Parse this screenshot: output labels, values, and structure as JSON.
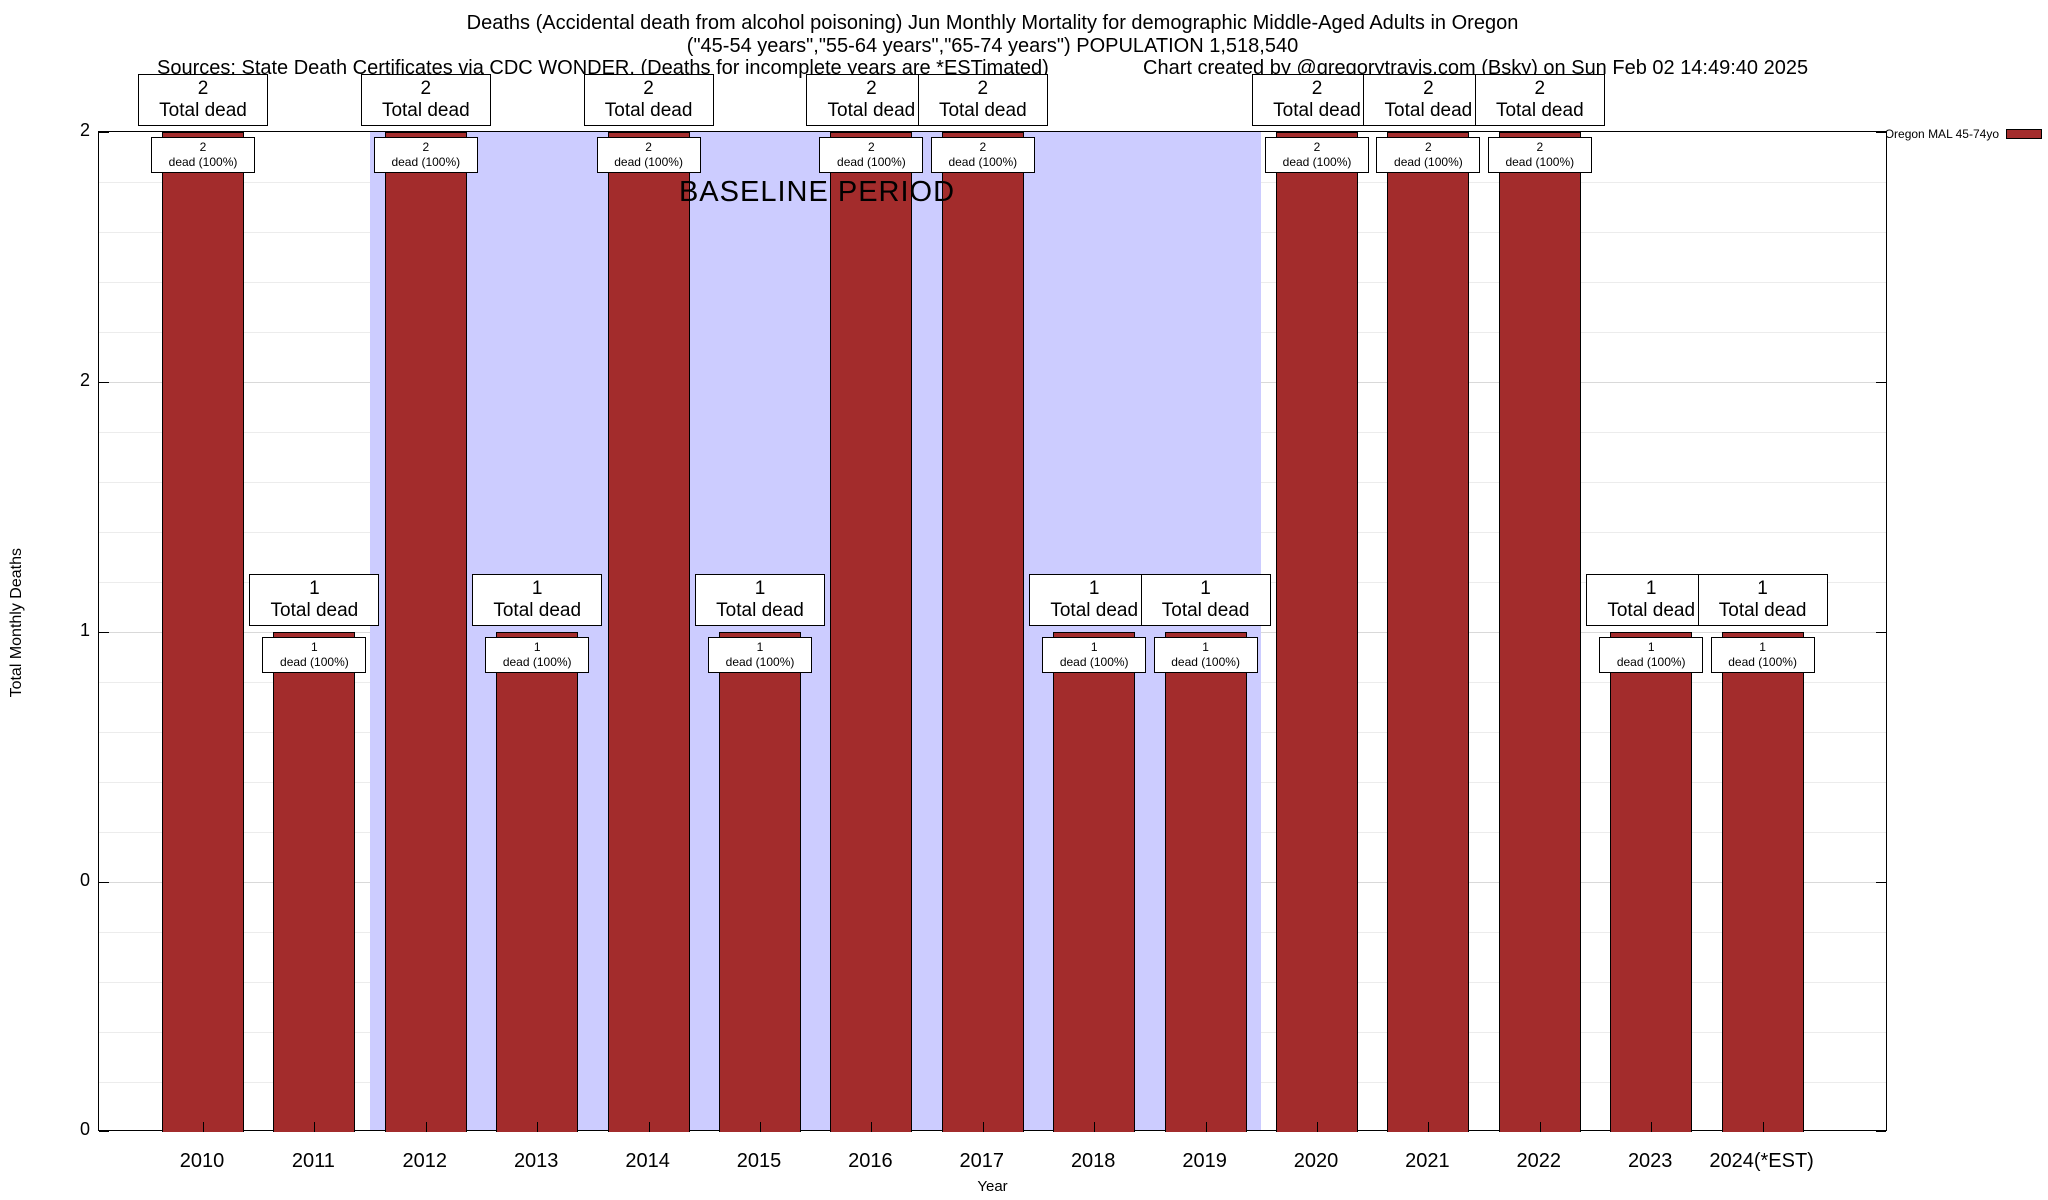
{
  "header": {
    "title_line1": "Deaths (Accidental death from alcohol poisoning) Jun Monthly Mortality for demographic Middle-Aged Adults in Oregon",
    "title_line2": "(\"45-54 years\",\"55-64 years\",\"65-74 years\") POPULATION 1,518,540",
    "sources": "Sources: State Death Certificates via CDC WONDER. (Deaths for incomplete years are *ESTimated)",
    "credit": "Chart created by @gregorytravis.com (Bsky) on Sun Feb 02 14:49:40 2025"
  },
  "legend": {
    "label": "Oregon MAL 45-74yo",
    "color": "#a32c2c"
  },
  "chart_data": {
    "type": "bar",
    "title": "Deaths (Accidental death from alcohol poisoning) Jun Monthly Mortality for demographic Middle-Aged Adults in Oregon",
    "subtitle": "(\"45-54 years\",\"55-64 years\",\"65-74 years\") POPULATION 1,518,540",
    "xlabel": "Year",
    "ylabel": "Total Monthly Deaths",
    "ylim": [
      0,
      2
    ],
    "ytick_values": [
      0,
      0.5,
      1,
      1.5,
      2
    ],
    "ytick_labels": [
      "0",
      "0",
      "1",
      "2",
      "2"
    ],
    "categories": [
      "2010",
      "2011",
      "2012",
      "2013",
      "2014",
      "2015",
      "2016",
      "2017",
      "2018",
      "2019",
      "2020",
      "2021",
      "2022",
      "2023",
      "2024(*EST)"
    ],
    "values": [
      2,
      1,
      2,
      1,
      2,
      1,
      2,
      2,
      1,
      1,
      2,
      2,
      2,
      1,
      1
    ],
    "series_name": "Oregon MAL 45-74yo",
    "bar_color": "#a32c2c",
    "grid": true,
    "legend_position": "top-right",
    "baseline_band": {
      "x_start": 2011.5,
      "x_end": 2019.5,
      "first_year": 2012,
      "last_year": 2019,
      "color": "#ccccff",
      "label": "BASELINE PERIOD"
    },
    "bar_top_label_suffix": "Total dead",
    "bar_inner_label_suffix": "dead (100%)"
  }
}
